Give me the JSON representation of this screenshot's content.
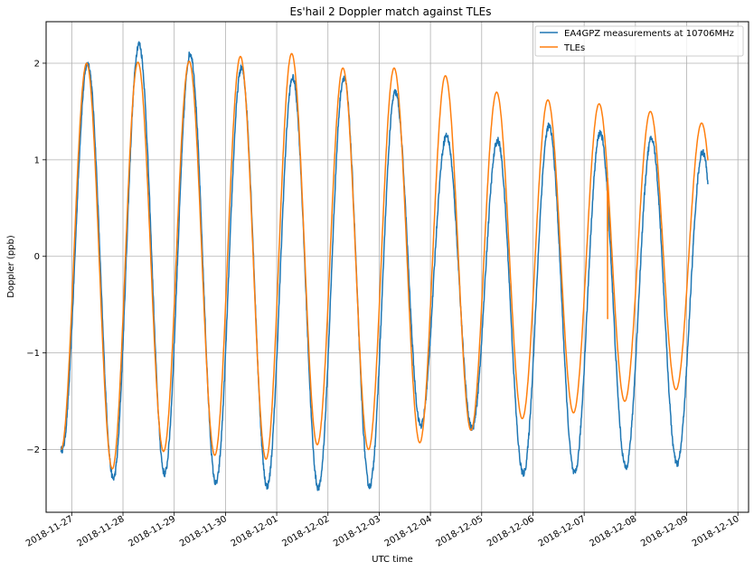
{
  "chart_data": {
    "type": "line",
    "title": "Es'hail 2 Doppler match against TLEs",
    "xlabel": "UTC time",
    "ylabel": "Doppler (ppb)",
    "xlim": [
      "2018-11-26T12:00",
      "2018-12-10T05:00"
    ],
    "ylim": [
      -2.65,
      2.43
    ],
    "grid": true,
    "legend_position": "top-right",
    "x_tick_labels": [
      "2018-11-27",
      "2018-11-28",
      "2018-11-29",
      "2018-11-30",
      "2018-12-01",
      "2018-12-02",
      "2018-12-03",
      "2018-12-04",
      "2018-12-05",
      "2018-12-06",
      "2018-12-07",
      "2018-12-08",
      "2018-12-09",
      "2018-12-10"
    ],
    "y_ticks": [
      -2,
      -1,
      0,
      1,
      2
    ],
    "y_tick_labels": [
      "−2",
      "−1",
      "0",
      "1",
      "2"
    ],
    "series": [
      {
        "name": "EA4GPZ measurements at 10706MHz",
        "color": "#1f77b4",
        "start": "2018-11-26T19:00",
        "end": "2018-12-09T10:00",
        "peaks": [
          {
            "t": "2018-11-27T07:30",
            "v": 2.0
          },
          {
            "t": "2018-11-28T07:30",
            "v": 2.2
          },
          {
            "t": "2018-11-29T07:30",
            "v": 2.1
          },
          {
            "t": "2018-11-30T07:30",
            "v": 1.95
          },
          {
            "t": "2018-12-01T07:30",
            "v": 1.85
          },
          {
            "t": "2018-12-02T07:30",
            "v": 1.85
          },
          {
            "t": "2018-12-03T07:30",
            "v": 1.7
          },
          {
            "t": "2018-12-04T07:30",
            "v": 1.25
          },
          {
            "t": "2018-12-05T07:30",
            "v": 1.2
          },
          {
            "t": "2018-12-06T07:30",
            "v": 1.35
          },
          {
            "t": "2018-12-07T07:30",
            "v": 1.28
          },
          {
            "t": "2018-12-08T07:30",
            "v": 1.22
          },
          {
            "t": "2018-12-09T07:30",
            "v": 1.08
          }
        ],
        "troughs": [
          {
            "t": "2018-11-26T19:30",
            "v": -2.0
          },
          {
            "t": "2018-11-27T19:30",
            "v": -2.3
          },
          {
            "t": "2018-11-28T19:30",
            "v": -2.25
          },
          {
            "t": "2018-11-29T19:30",
            "v": -2.35
          },
          {
            "t": "2018-11-30T19:30",
            "v": -2.38
          },
          {
            "t": "2018-12-01T19:30",
            "v": -2.4
          },
          {
            "t": "2018-12-02T19:30",
            "v": -2.38
          },
          {
            "t": "2018-12-03T19:30",
            "v": -1.75
          },
          {
            "t": "2018-12-04T19:30",
            "v": -1.78
          },
          {
            "t": "2018-12-05T19:30",
            "v": -2.25
          },
          {
            "t": "2018-12-06T19:30",
            "v": -2.25
          },
          {
            "t": "2018-12-07T19:30",
            "v": -2.18
          },
          {
            "t": "2018-12-08T19:30",
            "v": -2.15
          }
        ]
      },
      {
        "name": "TLEs",
        "color": "#ff7f0e",
        "start": "2018-11-26T19:00",
        "end": "2018-12-09T10:00",
        "peaks": [
          {
            "t": "2018-11-27T07:00",
            "v": 2.0
          },
          {
            "t": "2018-11-28T07:00",
            "v": 2.01
          },
          {
            "t": "2018-11-29T07:00",
            "v": 2.02
          },
          {
            "t": "2018-11-30T07:00",
            "v": 2.07
          },
          {
            "t": "2018-12-01T07:00",
            "v": 2.1
          },
          {
            "t": "2018-12-02T07:00",
            "v": 1.95
          },
          {
            "t": "2018-12-03T07:00",
            "v": 1.95
          },
          {
            "t": "2018-12-04T07:00",
            "v": 1.87
          },
          {
            "t": "2018-12-05T07:00",
            "v": 1.7
          },
          {
            "t": "2018-12-06T07:00",
            "v": 1.62
          },
          {
            "t": "2018-12-07T07:00",
            "v": 1.58
          },
          {
            "t": "2018-12-08T07:00",
            "v": 1.5
          },
          {
            "t": "2018-12-09T07:00",
            "v": 1.38
          }
        ],
        "troughs": [
          {
            "t": "2018-11-26T19:00",
            "v": -2.0
          },
          {
            "t": "2018-11-27T19:00",
            "v": -2.2
          },
          {
            "t": "2018-11-28T19:00",
            "v": -2.02
          },
          {
            "t": "2018-11-29T19:00",
            "v": -2.06
          },
          {
            "t": "2018-11-30T19:00",
            "v": -2.1
          },
          {
            "t": "2018-12-01T19:00",
            "v": -1.95
          },
          {
            "t": "2018-12-02T19:00",
            "v": -2.0
          },
          {
            "t": "2018-12-03T19:00",
            "v": -1.93
          },
          {
            "t": "2018-12-04T19:00",
            "v": -1.8
          },
          {
            "t": "2018-12-05T19:00",
            "v": -1.68
          },
          {
            "t": "2018-12-06T19:00",
            "v": -1.62
          },
          {
            "t": "2018-12-07T19:00",
            "v": -1.5
          },
          {
            "t": "2018-12-08T19:00",
            "v": -1.38
          }
        ],
        "discontinuity": {
          "t": "2018-12-07T11:00",
          "v_before": -0.65,
          "v_after": 0.26
        }
      }
    ]
  }
}
